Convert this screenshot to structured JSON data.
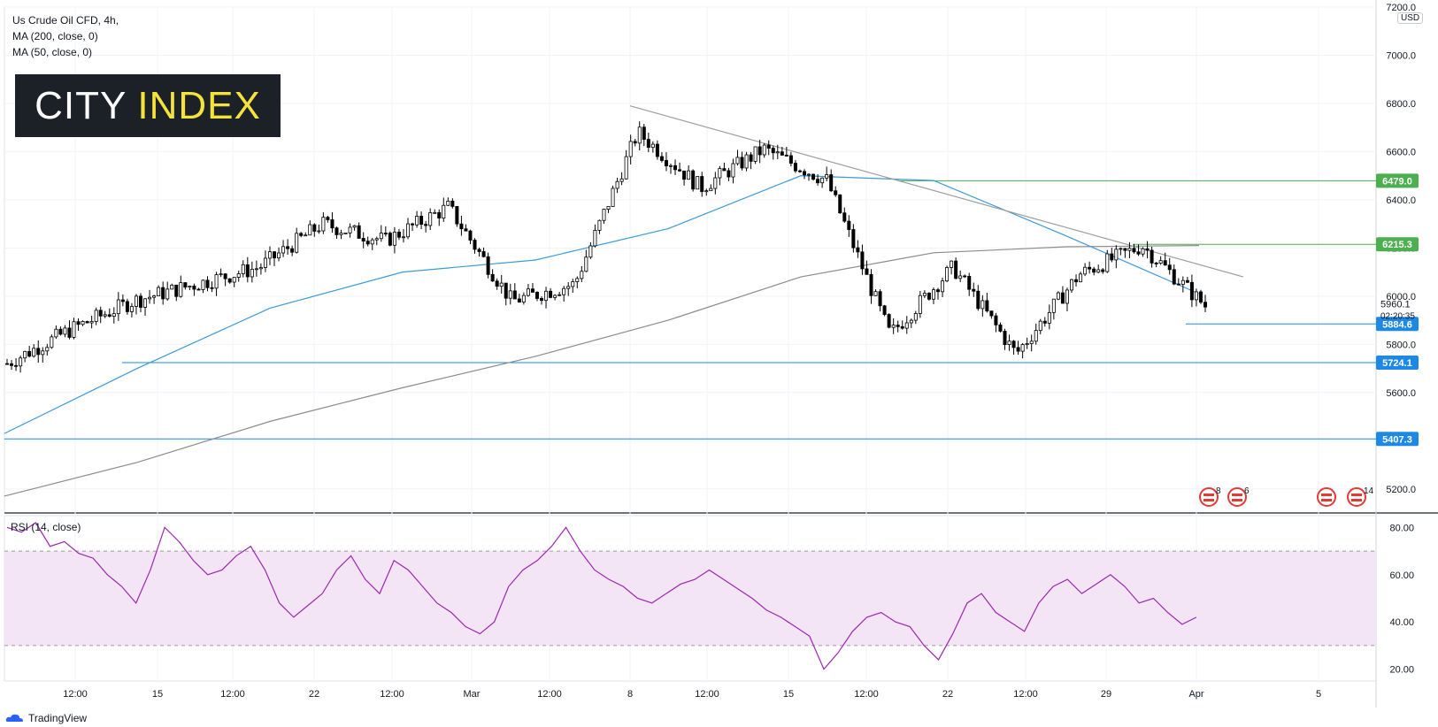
{
  "app": {
    "watermark": "TradingView",
    "currency": "USD"
  },
  "legend": {
    "symbol": "Us Crude Oil CFD, 4h,",
    "ma200": "MA (200, close, 0)",
    "ma50": "MA (50, close, 0)"
  },
  "logo": {
    "word1": "CITY",
    "word2": "INDEX"
  },
  "rsi_title": "RSI (14, close)",
  "colors": {
    "ma50": "#3a9ad9",
    "ma200": "#8c8c8c",
    "trendline": "#9e9e9e",
    "resistance": "#4caf50",
    "support": "#1e88e5",
    "rsi": "#9c27b0",
    "rsi_band": "#f3e5f5",
    "candle": "#000000"
  },
  "chart_data": [
    {
      "type": "candlestick",
      "title": "Us Crude Oil CFD, 4h",
      "ylim": [
        5100,
        7200
      ],
      "y_ticks": [
        "5200.0",
        "5400.0",
        "5600.0",
        "5800.0",
        "6000.0",
        "6200.0",
        "6400.0",
        "6600.0",
        "6800.0",
        "7000.0",
        "7200.0"
      ],
      "x_labels": [
        "12:00",
        "15",
        "12:00",
        "22",
        "12:00",
        "Mar",
        "12:00",
        "8",
        "12:00",
        "15",
        "12:00",
        "22",
        "12:00",
        "29",
        "Apr",
        "5"
      ],
      "last_price": "5960.1",
      "countdown": "02:20:35",
      "horizontal_levels": [
        {
          "label": "6479.0",
          "value": 6479.0,
          "kind": "resistance"
        },
        {
          "label": "6215.3",
          "value": 6215.3,
          "kind": "resistance"
        },
        {
          "label": "5884.6",
          "value": 5884.6,
          "kind": "support"
        },
        {
          "label": "5724.1",
          "value": 5724.1,
          "kind": "support"
        },
        {
          "label": "5407.3",
          "value": 5407.3,
          "kind": "support"
        }
      ],
      "trendline": {
        "from": {
          "date": "Mar 8",
          "value": 6790
        },
        "to": {
          "date": "Apr 2",
          "value": 6080
        }
      },
      "series": [
        {
          "name": "MA (200, close, 0)",
          "values": [
            5170,
            5310,
            5480,
            5620,
            5750,
            5900,
            6080,
            6180,
            6205,
            6210
          ]
        },
        {
          "name": "MA (50, close, 0)",
          "values": [
            5430,
            5700,
            5950,
            6100,
            6150,
            6280,
            6500,
            6480,
            6250,
            6010
          ]
        },
        {
          "name": "Price (close)",
          "values": [
            5720,
            5860,
            5980,
            6050,
            6120,
            6300,
            6230,
            6370,
            5980,
            6050,
            6680,
            6450,
            6610,
            6480,
            5840,
            6120,
            5760,
            6090,
            6210,
            5960
          ]
        }
      ],
      "event_markers": [
        "8",
        "6",
        "14"
      ]
    },
    {
      "type": "line",
      "title": "RSI (14, close)",
      "ylim": [
        15,
        85
      ],
      "y_ticks": [
        "20.00",
        "40.00",
        "60.00",
        "80.00"
      ],
      "bands": [
        30,
        70
      ],
      "values": [
        80,
        78,
        82,
        72,
        74,
        69,
        67,
        60,
        55,
        48,
        62,
        80,
        74,
        66,
        60,
        62,
        68,
        72,
        62,
        48,
        42,
        47,
        52,
        62,
        68,
        58,
        52,
        66,
        62,
        55,
        48,
        44,
        38,
        35,
        40,
        55,
        62,
        66,
        72,
        80,
        70,
        62,
        58,
        55,
        50,
        48,
        52,
        56,
        58,
        62,
        58,
        54,
        50,
        45,
        42,
        38,
        34,
        20,
        27,
        36,
        42,
        44,
        40,
        38,
        30,
        24,
        35,
        48,
        52,
        44,
        40,
        36,
        48,
        55,
        58,
        52,
        56,
        60,
        55,
        48,
        50,
        44,
        39,
        42
      ]
    }
  ]
}
